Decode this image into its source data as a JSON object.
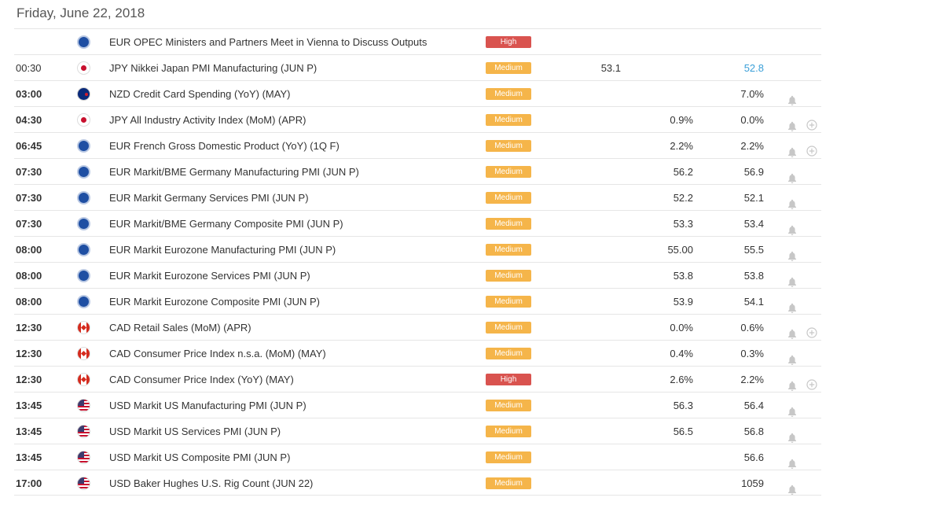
{
  "day_header": "Friday, June 22, 2018",
  "colors": {
    "medium": "#f5b54a",
    "high": "#d9534f",
    "previous_highlight": "#3a9fd8"
  },
  "events": [
    {
      "time": "",
      "flag": "eur",
      "event": "EUR OPEC Ministers and Partners Meet in Vienna to Discuss Outputs",
      "importance": "High",
      "actual": "",
      "forecast": "",
      "previous": "",
      "bell": false,
      "plus": false
    },
    {
      "time": "00:30",
      "time_bold": false,
      "flag": "jpy",
      "event": "JPY Nikkei Japan PMI Manufacturing (JUN P)",
      "importance": "Medium",
      "actual": "53.1",
      "forecast": "",
      "previous": "52.8",
      "previous_blue": true,
      "bell": false,
      "plus": false
    },
    {
      "time": "03:00",
      "time_bold": true,
      "flag": "nzd",
      "event": "NZD Credit Card Spending (YoY) (MAY)",
      "importance": "Medium",
      "actual": "",
      "forecast": "",
      "previous": "7.0%",
      "bell": true,
      "plus": false
    },
    {
      "time": "04:30",
      "time_bold": true,
      "flag": "jpy",
      "event": "JPY All Industry Activity Index (MoM) (APR)",
      "importance": "Medium",
      "actual": "",
      "forecast": "0.9%",
      "previous": "0.0%",
      "bell": true,
      "plus": true
    },
    {
      "time": "06:45",
      "time_bold": true,
      "flag": "eur",
      "event": "EUR French Gross Domestic Product (YoY) (1Q F)",
      "importance": "Medium",
      "actual": "",
      "forecast": "2.2%",
      "previous": "2.2%",
      "bell": true,
      "plus": true
    },
    {
      "time": "07:30",
      "time_bold": true,
      "flag": "eur",
      "event": "EUR Markit/BME Germany Manufacturing PMI (JUN P)",
      "importance": "Medium",
      "actual": "",
      "forecast": "56.2",
      "previous": "56.9",
      "bell": true,
      "plus": false
    },
    {
      "time": "07:30",
      "time_bold": true,
      "flag": "eur",
      "event": "EUR Markit Germany Services PMI (JUN P)",
      "importance": "Medium",
      "actual": "",
      "forecast": "52.2",
      "previous": "52.1",
      "bell": true,
      "plus": false
    },
    {
      "time": "07:30",
      "time_bold": true,
      "flag": "eur",
      "event": "EUR Markit/BME Germany Composite PMI (JUN P)",
      "importance": "Medium",
      "actual": "",
      "forecast": "53.3",
      "previous": "53.4",
      "bell": true,
      "plus": false
    },
    {
      "time": "08:00",
      "time_bold": true,
      "flag": "eur",
      "event": "EUR Markit Eurozone Manufacturing PMI (JUN P)",
      "importance": "Medium",
      "actual": "",
      "forecast": "55.00",
      "previous": "55.5",
      "bell": true,
      "plus": false
    },
    {
      "time": "08:00",
      "time_bold": true,
      "flag": "eur",
      "event": "EUR Markit Eurozone Services PMI (JUN P)",
      "importance": "Medium",
      "actual": "",
      "forecast": "53.8",
      "previous": "53.8",
      "bell": true,
      "plus": false
    },
    {
      "time": "08:00",
      "time_bold": true,
      "flag": "eur",
      "event": "EUR Markit Eurozone Composite PMI (JUN P)",
      "importance": "Medium",
      "actual": "",
      "forecast": "53.9",
      "previous": "54.1",
      "bell": true,
      "plus": false
    },
    {
      "time": "12:30",
      "time_bold": true,
      "flag": "cad",
      "event": "CAD Retail Sales (MoM) (APR)",
      "importance": "Medium",
      "actual": "",
      "forecast": "0.0%",
      "previous": "0.6%",
      "bell": true,
      "plus": true
    },
    {
      "time": "12:30",
      "time_bold": true,
      "flag": "cad",
      "event": "CAD Consumer Price Index n.s.a. (MoM) (MAY)",
      "importance": "Medium",
      "actual": "",
      "forecast": "0.4%",
      "previous": "0.3%",
      "bell": true,
      "plus": false
    },
    {
      "time": "12:30",
      "time_bold": true,
      "flag": "cad",
      "event": "CAD Consumer Price Index (YoY) (MAY)",
      "importance": "High",
      "actual": "",
      "forecast": "2.6%",
      "previous": "2.2%",
      "bell": true,
      "plus": true
    },
    {
      "time": "13:45",
      "time_bold": true,
      "flag": "usd",
      "event": "USD Markit US Manufacturing PMI (JUN P)",
      "importance": "Medium",
      "actual": "",
      "forecast": "56.3",
      "previous": "56.4",
      "bell": true,
      "plus": false
    },
    {
      "time": "13:45",
      "time_bold": true,
      "flag": "usd",
      "event": "USD Markit US Services PMI (JUN P)",
      "importance": "Medium",
      "actual": "",
      "forecast": "56.5",
      "previous": "56.8",
      "bell": true,
      "plus": false
    },
    {
      "time": "13:45",
      "time_bold": true,
      "flag": "usd",
      "event": "USD Markit US Composite PMI (JUN P)",
      "importance": "Medium",
      "actual": "",
      "forecast": "",
      "previous": "56.6",
      "bell": true,
      "plus": false
    },
    {
      "time": "17:00",
      "time_bold": true,
      "flag": "usd",
      "event": "USD Baker Hughes U.S. Rig Count (JUN 22)",
      "importance": "Medium",
      "actual": "",
      "forecast": "",
      "previous": "1059",
      "bell": true,
      "plus": false
    }
  ]
}
